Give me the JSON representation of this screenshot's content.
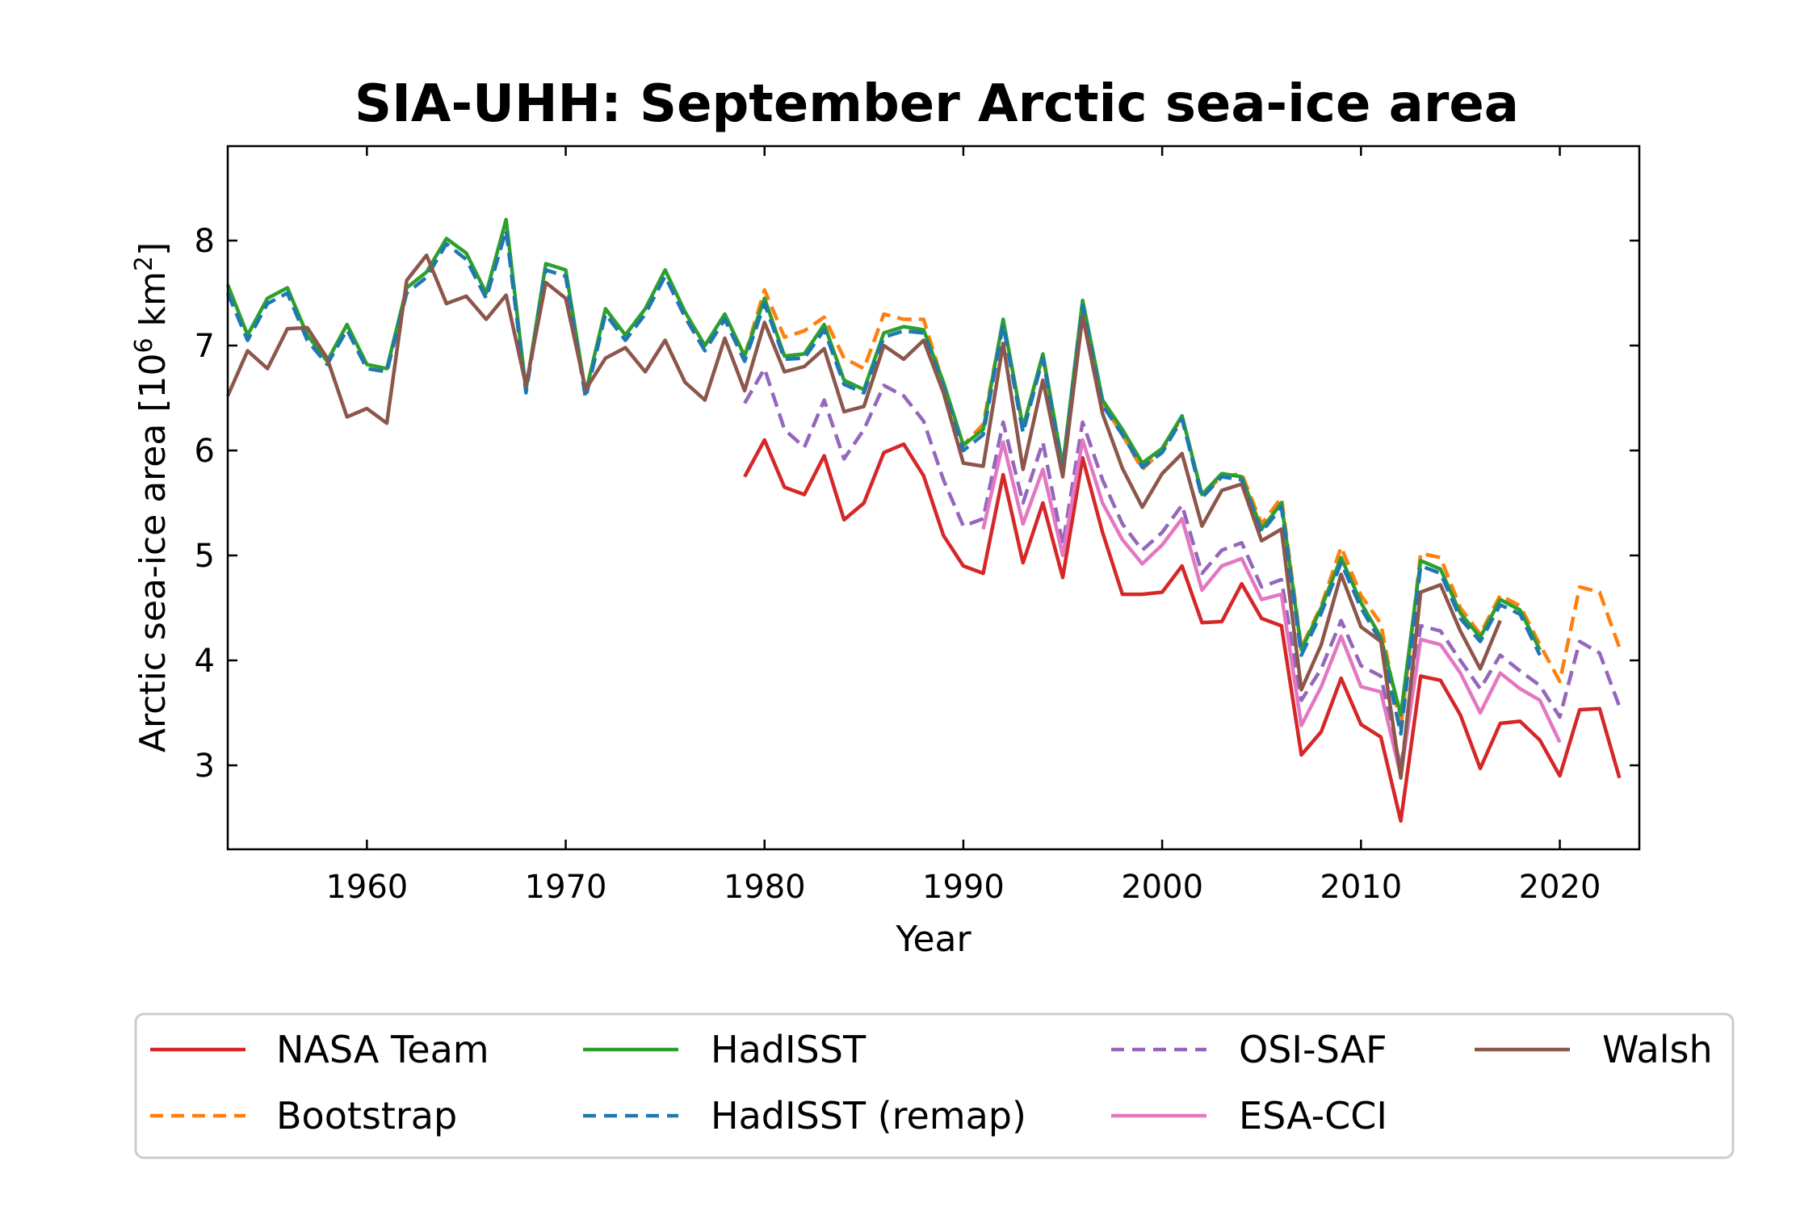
{
  "chart_data": {
    "type": "line",
    "title": "SIA-UHH: September Arctic sea-ice area",
    "xlabel": "Year",
    "ylabel": "Arctic sea-ice area [10^6 km^2]",
    "xlim": [
      1953,
      2024
    ],
    "ylim": [
      2.2,
      8.9
    ],
    "xticks": [
      1960,
      1970,
      1980,
      1990,
      2000,
      2010,
      2020
    ],
    "yticks": [
      3,
      4,
      5,
      6,
      7,
      8
    ],
    "grid": false,
    "legend_position": "bottom",
    "series": [
      {
        "name": "NASA Team",
        "color": "#d62728",
        "dash": "solid",
        "start": 1979,
        "values": [
          5.75,
          6.1,
          5.65,
          5.58,
          5.95,
          5.34,
          5.5,
          5.98,
          6.06,
          5.76,
          5.19,
          4.9,
          4.83,
          5.77,
          4.93,
          5.5,
          4.79,
          5.93,
          5.22,
          4.63,
          4.63,
          4.65,
          4.9,
          4.36,
          4.37,
          4.73,
          4.4,
          4.33,
          3.1,
          3.32,
          3.83,
          3.39,
          3.27,
          2.47,
          3.85,
          3.81,
          3.48,
          2.97,
          3.4,
          3.42,
          3.24,
          2.9,
          3.53,
          3.54,
          2.88
        ]
      },
      {
        "name": "Bootstrap",
        "color": "#ff7f0e",
        "dash": "dashed",
        "start": 1979,
        "values": [
          6.9,
          7.53,
          7.08,
          7.14,
          7.27,
          6.88,
          6.78,
          7.3,
          7.25,
          7.25,
          6.63,
          6.05,
          6.25,
          7.23,
          6.23,
          6.9,
          5.8,
          7.4,
          6.45,
          6.15,
          5.82,
          6.0,
          6.32,
          5.58,
          5.75,
          5.78,
          5.3,
          5.55,
          4.12,
          4.52,
          5.08,
          4.62,
          4.35,
          3.35,
          5.02,
          4.98,
          4.5,
          4.25,
          4.62,
          4.52,
          4.15,
          3.8,
          4.7,
          4.65,
          4.12
        ]
      },
      {
        "name": "HadISST",
        "color": "#2ca02c",
        "dash": "solid",
        "start": 1953,
        "values": [
          7.58,
          7.1,
          7.45,
          7.55,
          7.1,
          6.85,
          7.2,
          6.82,
          6.78,
          7.55,
          7.7,
          8.02,
          7.88,
          7.5,
          8.2,
          6.58,
          7.78,
          7.72,
          6.55,
          7.35,
          7.1,
          7.35,
          7.72,
          7.32,
          7.0,
          7.3,
          6.9,
          7.45,
          6.9,
          6.92,
          7.2,
          6.67,
          6.58,
          7.12,
          7.18,
          7.15,
          6.65,
          6.05,
          6.2,
          7.25,
          6.22,
          6.92,
          5.85,
          7.43,
          6.48,
          6.2,
          5.88,
          6.02,
          6.33,
          5.58,
          5.78,
          5.75,
          5.25,
          5.5,
          4.1,
          4.5,
          4.98,
          4.55,
          4.22,
          3.48,
          4.95,
          4.87,
          4.45,
          4.22,
          4.58,
          4.48,
          4.1
        ]
      },
      {
        "name": "HadISST (remap)",
        "color": "#1f77b4",
        "dash": "dashed",
        "start": 1953,
        "values": [
          7.5,
          7.05,
          7.4,
          7.5,
          7.05,
          6.82,
          7.15,
          6.78,
          6.75,
          7.5,
          7.65,
          7.97,
          7.82,
          7.45,
          8.1,
          6.55,
          7.72,
          7.66,
          6.5,
          7.3,
          7.05,
          7.3,
          7.66,
          7.27,
          6.95,
          7.25,
          6.85,
          7.4,
          6.87,
          6.88,
          7.15,
          6.63,
          6.55,
          7.08,
          7.14,
          7.12,
          6.6,
          6.0,
          6.15,
          7.2,
          6.17,
          6.88,
          5.8,
          7.38,
          6.43,
          6.15,
          5.84,
          5.98,
          6.3,
          5.55,
          5.75,
          5.72,
          5.22,
          5.46,
          4.05,
          4.45,
          4.93,
          4.5,
          4.18,
          3.3,
          4.9,
          4.83,
          4.4,
          4.18,
          4.53,
          4.44,
          4.05
        ]
      },
      {
        "name": "OSI-SAF",
        "color": "#9467bd",
        "dash": "dashed",
        "start": 1979,
        "values": [
          6.45,
          6.78,
          6.2,
          6.03,
          6.48,
          5.92,
          6.2,
          6.62,
          6.52,
          6.28,
          5.72,
          5.28,
          5.35,
          6.27,
          5.5,
          6.08,
          5.1,
          6.27,
          5.72,
          5.3,
          5.05,
          5.22,
          5.48,
          4.83,
          5.05,
          5.12,
          4.7,
          4.77,
          3.62,
          3.92,
          4.38,
          3.95,
          3.85,
          2.97,
          4.33,
          4.28,
          4.0,
          3.73,
          4.05,
          3.9,
          3.76,
          3.46,
          4.18,
          4.07,
          3.56
        ]
      },
      {
        "name": "ESA-CCI",
        "color": "#e377c2",
        "dash": "solid",
        "start": 1991,
        "values": [
          5.25,
          6.08,
          5.3,
          5.82,
          5.0,
          6.1,
          5.5,
          5.15,
          4.92,
          5.1,
          5.35,
          4.67,
          4.9,
          4.97,
          4.58,
          4.63,
          3.38,
          3.75,
          4.23,
          3.75,
          3.7,
          2.9,
          4.2,
          4.15,
          3.88,
          3.5,
          3.88,
          3.73,
          3.62,
          3.22
        ]
      },
      {
        "name": "Walsh",
        "color": "#8c564b",
        "dash": "solid",
        "start": 1953,
        "values": [
          6.52,
          6.95,
          6.78,
          7.16,
          7.17,
          6.88,
          6.32,
          6.4,
          6.26,
          7.62,
          7.86,
          7.4,
          7.47,
          7.25,
          7.48,
          6.62,
          7.6,
          7.45,
          6.58,
          6.88,
          6.98,
          6.75,
          7.05,
          6.65,
          6.48,
          7.07,
          6.57,
          7.22,
          6.75,
          6.8,
          6.97,
          6.37,
          6.42,
          7.0,
          6.87,
          7.05,
          6.55,
          5.88,
          5.85,
          7.02,
          5.82,
          6.67,
          5.75,
          7.28,
          6.35,
          5.83,
          5.46,
          5.78,
          5.97,
          5.28,
          5.62,
          5.68,
          5.14,
          5.25,
          3.72,
          4.15,
          4.82,
          4.32,
          4.18,
          2.88,
          4.65,
          4.72,
          4.28,
          3.92,
          4.38
        ]
      }
    ]
  }
}
